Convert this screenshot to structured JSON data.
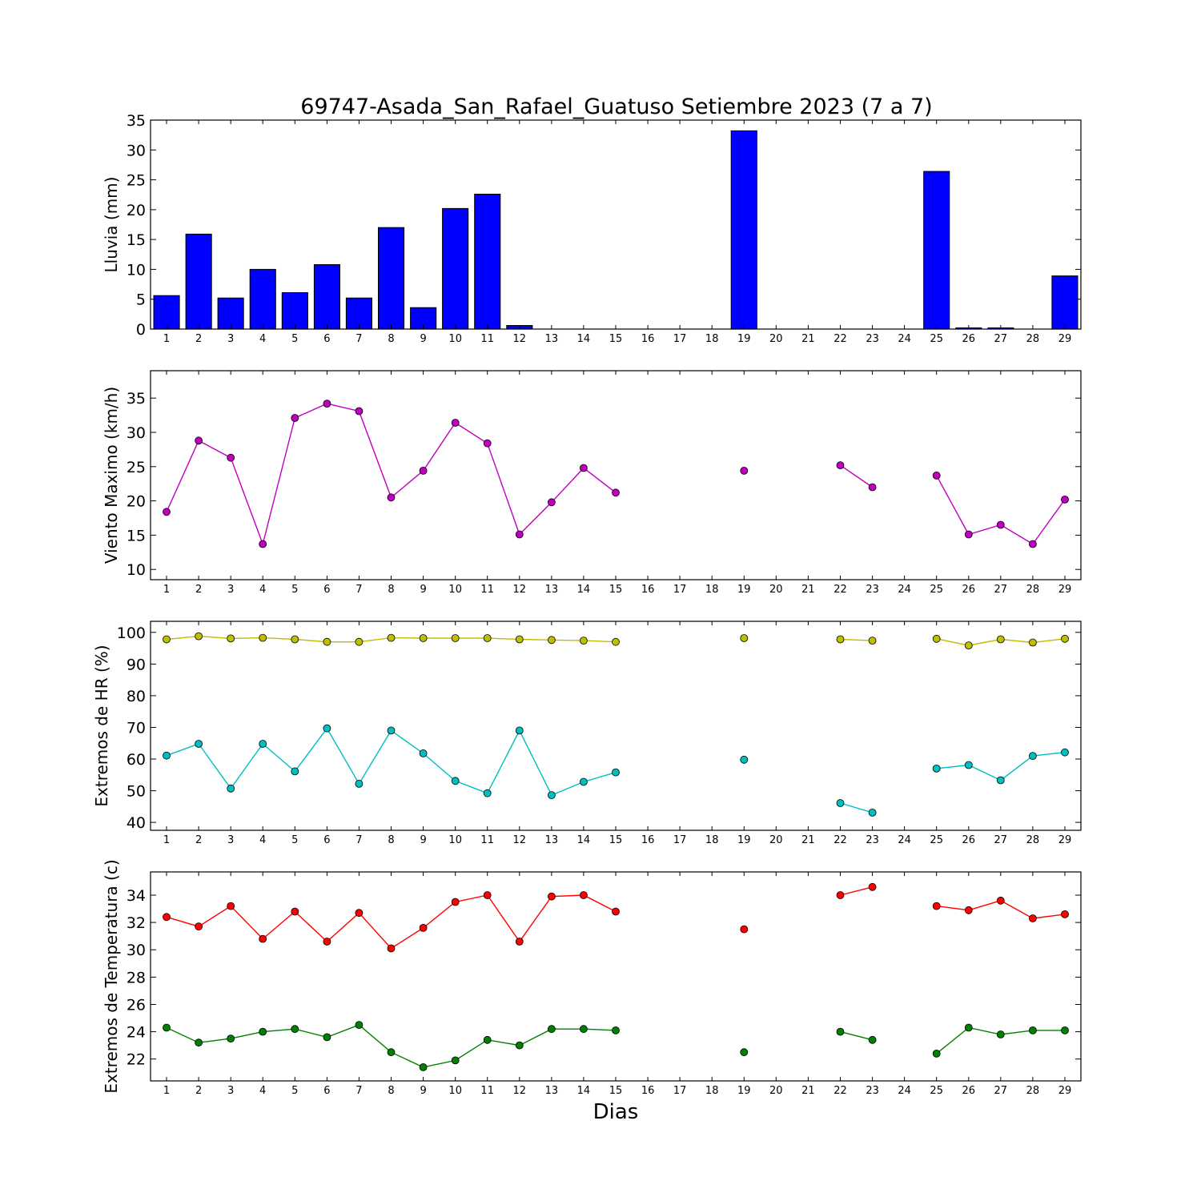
{
  "title": "69747-Asada_San_Rafael_Guatuso Setiembre 2023  (7 a 7)",
  "xlabel": "Dias",
  "chart_data": [
    {
      "type": "bar",
      "ylabel": "Lluvia (mm)",
      "x": [
        1,
        2,
        3,
        4,
        5,
        6,
        7,
        8,
        9,
        10,
        11,
        12,
        13,
        14,
        15,
        16,
        17,
        18,
        19,
        20,
        21,
        22,
        23,
        24,
        25,
        26,
        27,
        28,
        29
      ],
      "ylim": [
        0,
        35
      ],
      "yticks": [
        0,
        5,
        10,
        15,
        20,
        25,
        30,
        35
      ],
      "color": "#0000ff",
      "values": [
        5.6,
        15.9,
        5.2,
        10.0,
        6.1,
        10.8,
        5.2,
        17.0,
        3.6,
        20.2,
        22.6,
        0.6,
        0.0,
        0.0,
        0.0,
        0.0,
        0.0,
        0.0,
        33.2,
        0.0,
        0.0,
        0.0,
        0.0,
        0.0,
        26.4,
        0.2,
        0.2,
        0.0,
        8.9
      ]
    },
    {
      "type": "line",
      "ylabel": "Viento Maximo (km/h)",
      "x": [
        1,
        2,
        3,
        4,
        5,
        6,
        7,
        8,
        9,
        10,
        11,
        12,
        13,
        14,
        15,
        16,
        17,
        18,
        19,
        20,
        21,
        22,
        23,
        24,
        25,
        26,
        27,
        28,
        29
      ],
      "ylim": [
        8.5,
        39
      ],
      "yticks": [
        10,
        15,
        20,
        25,
        30,
        35
      ],
      "series": [
        {
          "color": "#bf00bf",
          "values": [
            18.4,
            28.8,
            26.3,
            13.7,
            32.1,
            34.2,
            33.1,
            20.5,
            24.4,
            31.4,
            28.4,
            15.1,
            19.8,
            24.8,
            21.2,
            null,
            null,
            null,
            24.4,
            null,
            null,
            25.2,
            22.0,
            null,
            23.7,
            15.1,
            16.5,
            13.7,
            20.2
          ]
        }
      ]
    },
    {
      "type": "line",
      "ylabel": "Extremos de HR (%)",
      "x": [
        1,
        2,
        3,
        4,
        5,
        6,
        7,
        8,
        9,
        10,
        11,
        12,
        13,
        14,
        15,
        16,
        17,
        18,
        19,
        20,
        21,
        22,
        23,
        24,
        25,
        26,
        27,
        28,
        29
      ],
      "ylim": [
        37.5,
        103.5
      ],
      "yticks": [
        40,
        50,
        60,
        70,
        80,
        90,
        100
      ],
      "series": [
        {
          "color": "#bfbf00",
          "values": [
            97.8,
            98.8,
            98.1,
            98.3,
            97.8,
            97.0,
            97.0,
            98.3,
            98.2,
            98.2,
            98.2,
            97.8,
            97.6,
            97.4,
            97.0,
            null,
            null,
            null,
            98.2,
            null,
            null,
            97.8,
            97.4,
            null,
            98.0,
            95.9,
            97.8,
            96.8,
            98.0
          ]
        },
        {
          "color": "#00bfbf",
          "values": [
            61.1,
            64.8,
            50.7,
            64.8,
            56.1,
            69.7,
            52.2,
            69.0,
            61.8,
            53.1,
            49.2,
            69.0,
            48.6,
            52.8,
            55.8,
            null,
            null,
            null,
            59.8,
            null,
            null,
            46.1,
            43.1,
            null,
            57.0,
            58.1,
            53.3,
            61.0,
            62.1
          ]
        }
      ]
    },
    {
      "type": "line",
      "ylabel": "Extremos de Temperatura (c)",
      "x": [
        1,
        2,
        3,
        4,
        5,
        6,
        7,
        8,
        9,
        10,
        11,
        12,
        13,
        14,
        15,
        16,
        17,
        18,
        19,
        20,
        21,
        22,
        23,
        24,
        25,
        26,
        27,
        28,
        29
      ],
      "ylim": [
        20.4,
        35.7
      ],
      "yticks": [
        22,
        24,
        26,
        28,
        30,
        32,
        34
      ],
      "series": [
        {
          "color": "#ff0000",
          "values": [
            32.4,
            31.7,
            33.2,
            30.8,
            32.8,
            30.6,
            32.7,
            30.1,
            31.6,
            33.5,
            34.0,
            30.6,
            33.9,
            34.0,
            32.8,
            null,
            null,
            null,
            31.5,
            null,
            null,
            34.0,
            34.6,
            null,
            33.2,
            32.9,
            33.6,
            32.3,
            32.6
          ]
        },
        {
          "color": "#008000",
          "values": [
            24.3,
            23.2,
            23.5,
            24.0,
            24.2,
            23.6,
            24.5,
            22.5,
            21.4,
            21.9,
            23.4,
            23.0,
            24.2,
            24.2,
            24.1,
            null,
            null,
            null,
            22.5,
            null,
            null,
            24.0,
            23.4,
            null,
            22.4,
            24.3,
            23.8,
            24.1,
            24.1
          ]
        }
      ]
    }
  ]
}
